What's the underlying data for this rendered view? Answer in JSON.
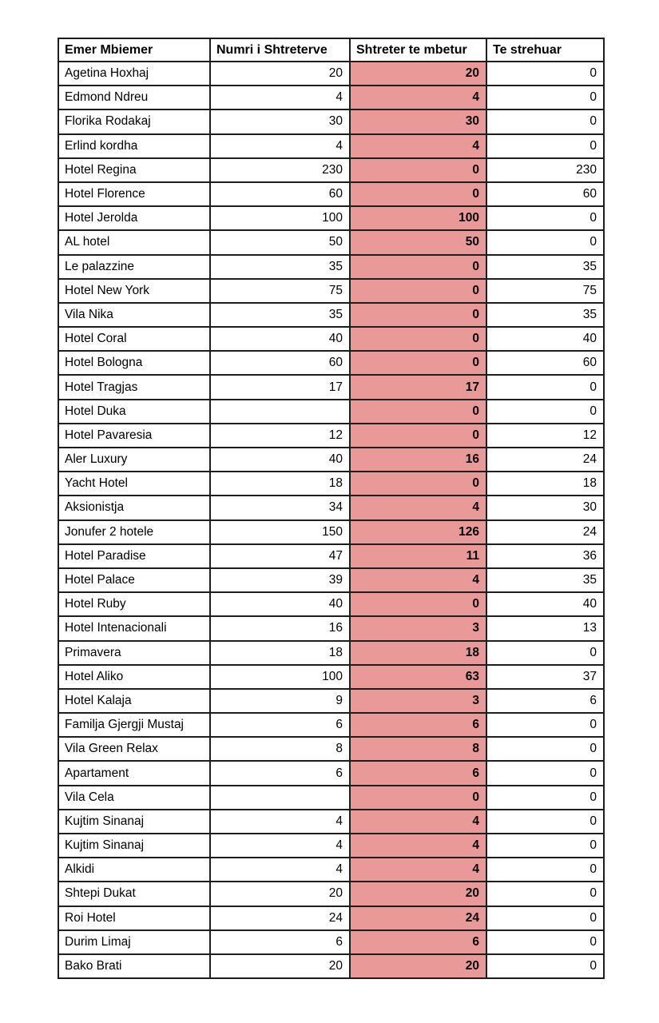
{
  "colors": {
    "remaining_highlight": "#ea9999",
    "grid_line": "#1e1e1e",
    "text": "#000000",
    "background": "#ffffff"
  },
  "table": {
    "columns": [
      "Emer Mbiemer",
      "Numri i Shtreterve",
      "Shtreter te mbetur",
      "Te strehuar"
    ],
    "rows": [
      {
        "name": "Agetina Hoxhaj",
        "beds": "20",
        "remaining": "20",
        "housed": "0"
      },
      {
        "name": "Edmond Ndreu",
        "beds": "4",
        "remaining": "4",
        "housed": "0"
      },
      {
        "name": "Florika Rodakaj",
        "beds": "30",
        "remaining": "30",
        "housed": "0"
      },
      {
        "name": "Erlind kordha",
        "beds": "4",
        "remaining": "4",
        "housed": "0"
      },
      {
        "name": "Hotel Regina",
        "beds": "230",
        "remaining": "0",
        "housed": "230"
      },
      {
        "name": "Hotel Florence",
        "beds": "60",
        "remaining": "0",
        "housed": "60"
      },
      {
        "name": "Hotel Jerolda",
        "beds": "100",
        "remaining": "100",
        "housed": "0"
      },
      {
        "name": "AL hotel",
        "beds": "50",
        "remaining": "50",
        "housed": "0"
      },
      {
        "name": "Le palazzine",
        "beds": "35",
        "remaining": "0",
        "housed": "35"
      },
      {
        "name": "Hotel New York",
        "beds": "75",
        "remaining": "0",
        "housed": "75"
      },
      {
        "name": "Vila Nika",
        "beds": "35",
        "remaining": "0",
        "housed": "35"
      },
      {
        "name": "Hotel Coral",
        "beds": "40",
        "remaining": "0",
        "housed": "40"
      },
      {
        "name": "Hotel Bologna",
        "beds": "60",
        "remaining": "0",
        "housed": "60"
      },
      {
        "name": "Hotel Tragjas",
        "beds": "17",
        "remaining": "17",
        "housed": "0"
      },
      {
        "name": "Hotel Duka",
        "beds": "",
        "remaining": "0",
        "housed": "0"
      },
      {
        "name": "Hotel Pavaresia",
        "beds": "12",
        "remaining": "0",
        "housed": "12"
      },
      {
        "name": "Aler Luxury",
        "beds": "40",
        "remaining": "16",
        "housed": "24"
      },
      {
        "name": "Yacht Hotel",
        "beds": "18",
        "remaining": "0",
        "housed": "18"
      },
      {
        "name": "Aksionistja",
        "beds": "34",
        "remaining": "4",
        "housed": "30"
      },
      {
        "name": "Jonufer 2 hotele",
        "beds": "150",
        "remaining": "126",
        "housed": "24"
      },
      {
        "name": "Hotel Paradise",
        "beds": "47",
        "remaining": "11",
        "housed": "36"
      },
      {
        "name": "Hotel Palace",
        "beds": "39",
        "remaining": "4",
        "housed": "35"
      },
      {
        "name": "Hotel Ruby",
        "beds": "40",
        "remaining": "0",
        "housed": "40"
      },
      {
        "name": "Hotel Intenacionali",
        "beds": "16",
        "remaining": "3",
        "housed": "13"
      },
      {
        "name": "Primavera",
        "beds": "18",
        "remaining": "18",
        "housed": "0"
      },
      {
        "name": "Hotel Aliko",
        "beds": "100",
        "remaining": "63",
        "housed": "37"
      },
      {
        "name": "Hotel Kalaja",
        "beds": "9",
        "remaining": "3",
        "housed": "6"
      },
      {
        "name": "Familja Gjergji Mustaj",
        "beds": "6",
        "remaining": "6",
        "housed": "0"
      },
      {
        "name": "Vila Green Relax",
        "beds": "8",
        "remaining": "8",
        "housed": "0"
      },
      {
        "name": "Apartament",
        "beds": "6",
        "remaining": "6",
        "housed": "0"
      },
      {
        "name": "Vila Cela",
        "beds": "",
        "remaining": "0",
        "housed": "0"
      },
      {
        "name": "Kujtim Sinanaj",
        "beds": "4",
        "remaining": "4",
        "housed": "0"
      },
      {
        "name": "Kujtim Sinanaj",
        "beds": "4",
        "remaining": "4",
        "housed": "0"
      },
      {
        "name": "Alkidi",
        "beds": "4",
        "remaining": "4",
        "housed": "0"
      },
      {
        "name": "Shtepi Dukat",
        "beds": "20",
        "remaining": "20",
        "housed": "0"
      },
      {
        "name": "Roi Hotel",
        "beds": "24",
        "remaining": "24",
        "housed": "0"
      },
      {
        "name": "Durim Limaj",
        "beds": "6",
        "remaining": "6",
        "housed": "0"
      },
      {
        "name": "Bako Brati",
        "beds": "20",
        "remaining": "20",
        "housed": "0"
      }
    ]
  }
}
